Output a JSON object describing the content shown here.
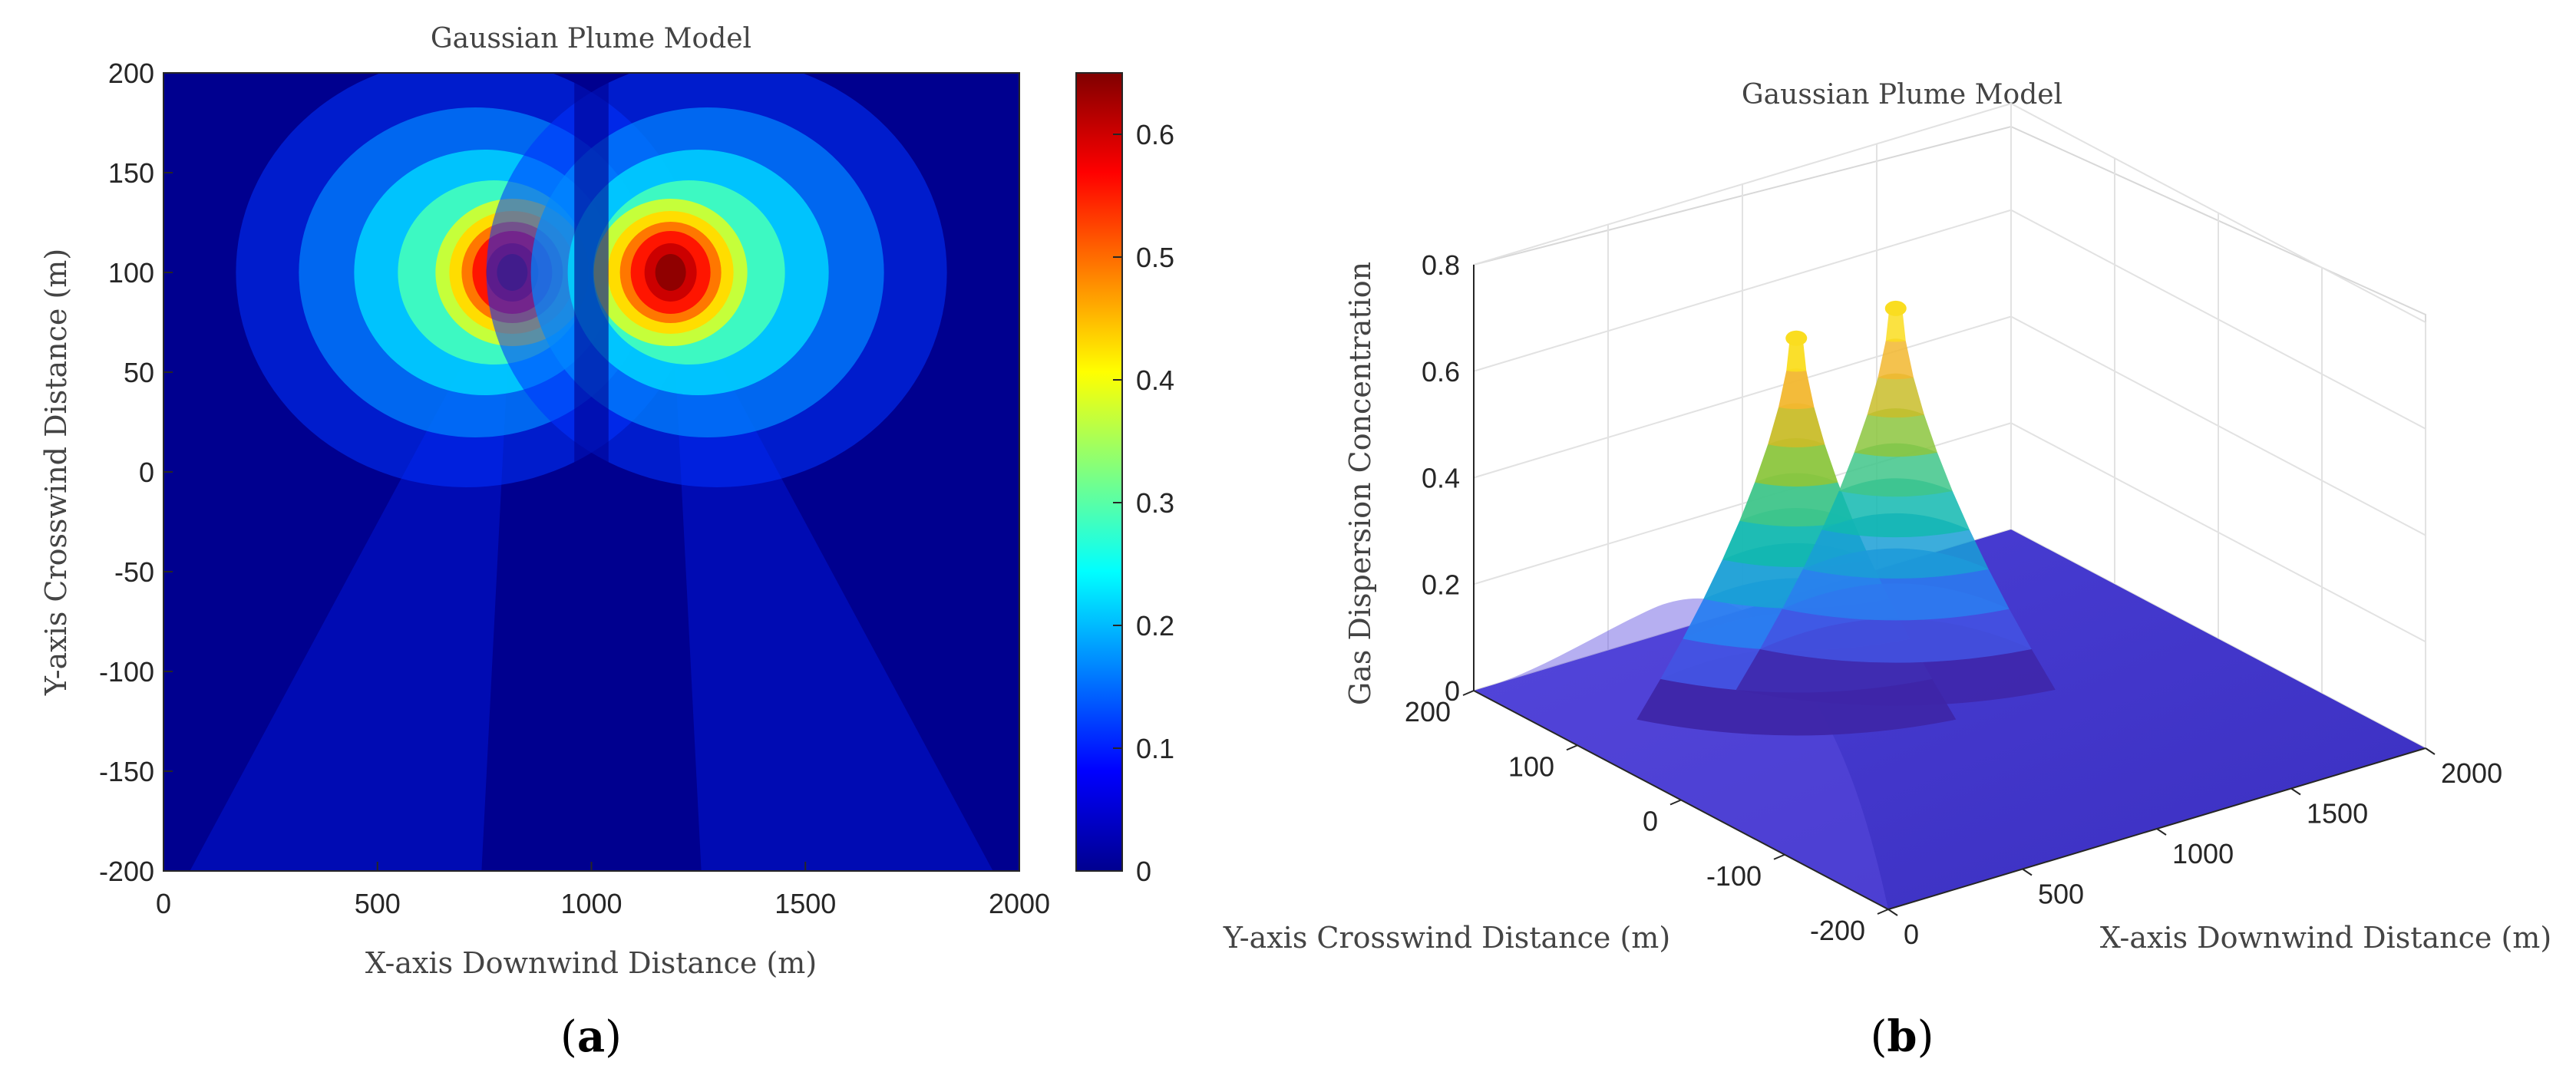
{
  "chart_data": [
    {
      "panel_label": "a",
      "type": "heatmap",
      "title": "Gaussian Plume Model",
      "xlabel": "X-axis Downwind Distance (m)",
      "ylabel": "Y-axis Crosswind Distance (m)",
      "xlim": [
        0,
        2000
      ],
      "ylim": [
        -200,
        200
      ],
      "xticks": [
        0,
        500,
        1000,
        1500,
        2000
      ],
      "yticks": [
        200,
        150,
        100,
        50,
        0,
        -50,
        -100,
        -150,
        -200
      ],
      "colorbar": {
        "min": 0,
        "max": 0.65,
        "ticks": [
          0.6,
          0.5,
          0.4,
          0.3,
          0.2,
          0.1,
          0
        ],
        "colormap": "jet"
      },
      "sources": [
        {
          "x": 815,
          "y": 100,
          "peak": 0.65
        },
        {
          "x": 1185,
          "y": 100,
          "peak": 0.65
        }
      ]
    },
    {
      "panel_label": "b",
      "type": "surface",
      "title": "Gaussian Plume Model",
      "xlabel": "X-axis Downwind Distance (m)",
      "ylabel": "Y-axis Crosswind Distance (m)",
      "zlabel": "Gas Dispersion Concentration",
      "xlim": [
        0,
        2000
      ],
      "ylim": [
        -200,
        200
      ],
      "zlim": [
        0,
        0.8
      ],
      "xticks": [
        0,
        500,
        1000,
        1500,
        2000
      ],
      "yticks": [
        200,
        100,
        0,
        -100,
        -200
      ],
      "zticks": [
        0.8,
        0.6,
        0.4,
        0.2,
        0
      ],
      "colormap": "parula",
      "peaks": [
        {
          "x": 815,
          "y": 100,
          "z": 0.65
        },
        {
          "x": 1185,
          "y": 100,
          "z": 0.65
        }
      ]
    }
  ]
}
